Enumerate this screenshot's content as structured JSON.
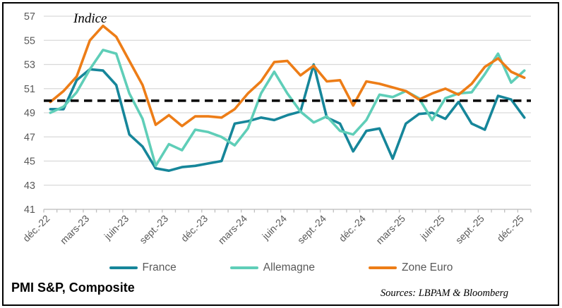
{
  "chart_data": {
    "type": "line",
    "title": "Indice",
    "x_visible_tick_labels": [
      "déc.-22",
      "mars-23",
      "juin-23",
      "sept.-23",
      "déc.-23",
      "mars-24",
      "juin-24",
      "sept.-24",
      "déc.-24",
      "mars-25",
      "juin-25",
      "sept.-25",
      "déc.-25"
    ],
    "categories": [
      "déc.-22",
      "janv.-23",
      "févr.-23",
      "mars-23",
      "avr.-23",
      "mai-23",
      "juin-23",
      "juil.-23",
      "août-23",
      "sept.-23",
      "oct.-23",
      "nov.-23",
      "déc.-23",
      "janv.-24",
      "févr.-24",
      "mars-24",
      "avr.-24",
      "mai-24",
      "juin-24",
      "juil.-24",
      "août-24",
      "sept.-24",
      "oct.-24",
      "nov.-24",
      "déc.-24",
      "janv.-25",
      "févr.-25",
      "mars-25",
      "avr.-25",
      "mai-25",
      "juin-25",
      "juil.-25",
      "août-25",
      "sept.-25",
      "oct.-25",
      "nov.-25",
      "déc.-25"
    ],
    "ylim": [
      41,
      57
    ],
    "y_ticks": [
      41,
      43,
      45,
      47,
      49,
      51,
      53,
      55,
      57
    ],
    "grid": "horizontal",
    "legend_position": "bottom",
    "reference_line": {
      "value": 50,
      "style": "dashed",
      "color": "#000000"
    },
    "series": [
      {
        "name": "France",
        "color": "#16869A",
        "values": [
          49.3,
          49.3,
          51.7,
          52.6,
          52.5,
          51.3,
          47.2,
          46.2,
          44.4,
          44.2,
          44.5,
          44.6,
          44.8,
          45.0,
          48.1,
          48.3,
          48.6,
          48.4,
          48.8,
          49.1,
          53.0,
          48.6,
          48.1,
          45.8,
          47.5,
          47.7,
          45.2,
          48.1,
          48.9,
          49.0,
          48.5,
          49.9,
          48.1,
          47.6,
          50.4,
          50.1,
          48.6
        ]
      },
      {
        "name": "Allemagne",
        "color": "#5FCEB8",
        "values": [
          49.0,
          49.5,
          50.7,
          52.6,
          54.2,
          53.9,
          50.6,
          48.5,
          44.6,
          46.4,
          45.9,
          47.6,
          47.4,
          47.0,
          46.3,
          47.7,
          50.6,
          52.4,
          50.6,
          49.1,
          48.2,
          48.7,
          47.5,
          47.2,
          48.4,
          50.5,
          50.3,
          50.8,
          50.2,
          48.4,
          50.2,
          50.6,
          50.7,
          52.2,
          53.9,
          51.5,
          52.5
        ]
      },
      {
        "name": "Zone Euro",
        "color": "#ED7D17",
        "values": [
          49.9,
          50.8,
          52.0,
          55.0,
          56.2,
          55.3,
          53.3,
          51.3,
          48.0,
          48.8,
          47.9,
          48.7,
          48.7,
          48.6,
          49.3,
          50.6,
          51.6,
          53.2,
          53.3,
          52.1,
          52.9,
          51.6,
          51.7,
          49.6,
          51.6,
          51.4,
          51.1,
          50.8,
          50.1,
          50.6,
          51.0,
          50.5,
          51.4,
          52.8,
          53.5,
          52.4,
          51.9
        ]
      }
    ],
    "axis_colors": {
      "grid": "#D9D9D9",
      "axis_line": "#BFBFBF",
      "tick_label": "#595959"
    }
  },
  "footer": {
    "title": "PMI S&P, Composite",
    "source": "Sources: LBPAM & Bloomberg"
  }
}
